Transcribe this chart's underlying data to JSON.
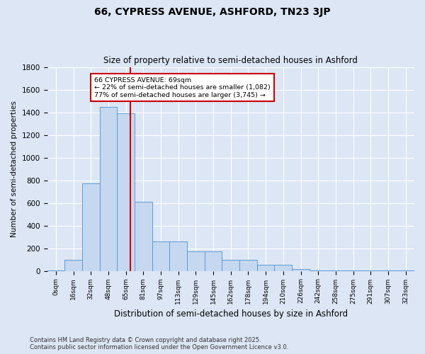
{
  "title1": "66, CYPRESS AVENUE, ASHFORD, TN23 3JP",
  "title2": "Size of property relative to semi-detached houses in Ashford",
  "xlabel": "Distribution of semi-detached houses by size in Ashford",
  "ylabel": "Number of semi-detached properties",
  "categories": [
    "0sqm",
    "16sqm",
    "32sqm",
    "48sqm",
    "65sqm",
    "81sqm",
    "97sqm",
    "113sqm",
    "129sqm",
    "145sqm",
    "162sqm",
    "178sqm",
    "194sqm",
    "210sqm",
    "226sqm",
    "242sqm",
    "258sqm",
    "275sqm",
    "291sqm",
    "307sqm",
    "323sqm"
  ],
  "bar_values": [
    5,
    95,
    770,
    1450,
    1390,
    610,
    260,
    260,
    175,
    175,
    95,
    95,
    55,
    55,
    18,
    5,
    5,
    5,
    5,
    5,
    5
  ],
  "bar_color": "#c5d8f0",
  "bar_edge_color": "#5b9bd5",
  "vline_color": "#cc0000",
  "annotation_box_color": "#ffffff",
  "annotation_box_edge_color": "#cc0000",
  "background_color": "#dce6f5",
  "grid_color": "#ffffff",
  "ylim": [
    0,
    1800
  ],
  "yticks": [
    0,
    200,
    400,
    600,
    800,
    1000,
    1200,
    1400,
    1600,
    1800
  ],
  "footnote": "Contains HM Land Registry data © Crown copyright and database right 2025.\nContains public sector information licensed under the Open Government Licence v3.0."
}
